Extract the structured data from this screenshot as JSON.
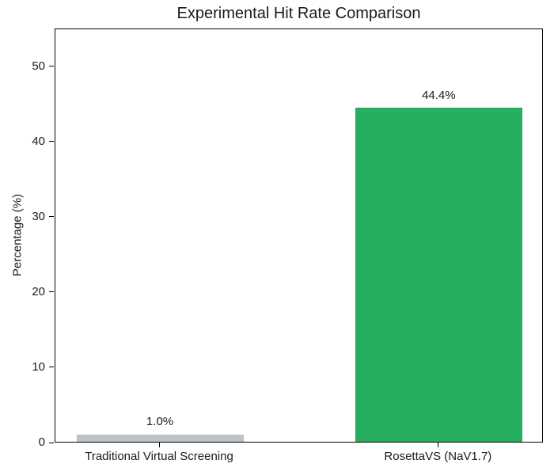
{
  "chart_data": {
    "type": "bar",
    "title": "Experimental Hit Rate Comparison",
    "xlabel": "",
    "ylabel": "Percentage (%)",
    "categories": [
      "Traditional Virtual Screening",
      "RosettaVS (NaV1.7)"
    ],
    "values": [
      1.0,
      44.4
    ],
    "value_labels": [
      "1.0%",
      "44.4%"
    ],
    "bar_colors": [
      "#bdc3c7",
      "#27ae60"
    ],
    "yticks": [
      0,
      10,
      20,
      30,
      40,
      50
    ],
    "ylim": [
      0,
      55
    ],
    "grid": false,
    "legend": "none",
    "background_color": "#ffffff",
    "spine_color": "#000000"
  }
}
